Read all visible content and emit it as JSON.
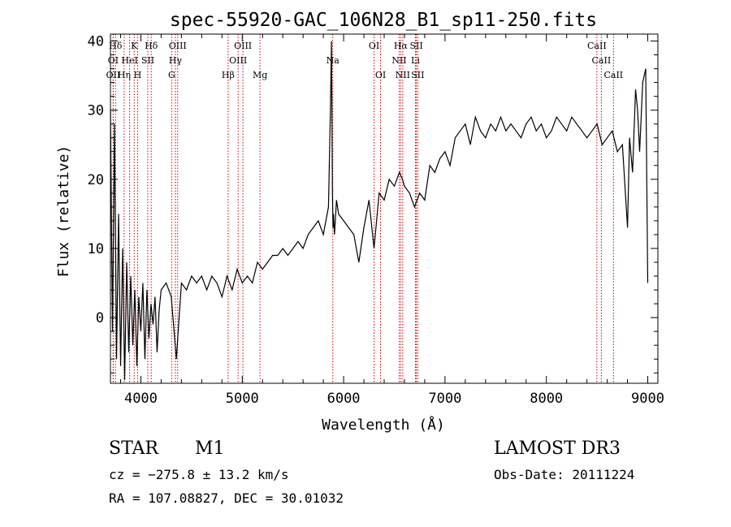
{
  "chart_data": {
    "type": "line",
    "title": "spec-55920-GAC_106N28_B1_sp11-250.fits",
    "xlabel": "Wavelength (Å)",
    "ylabel": "Flux (relative)",
    "xlim": [
      3700,
      9100
    ],
    "ylim": [
      -9.5,
      41
    ],
    "xticks": [
      4000,
      5000,
      6000,
      7000,
      8000,
      9000
    ],
    "yticks": [
      0,
      10,
      20,
      30,
      40
    ],
    "series": [
      {
        "name": "flux",
        "x": [
          3700,
          3720,
          3740,
          3760,
          3780,
          3800,
          3820,
          3840,
          3860,
          3880,
          3900,
          3920,
          3940,
          3960,
          3980,
          4000,
          4020,
          4040,
          4060,
          4080,
          4100,
          4120,
          4140,
          4160,
          4180,
          4200,
          4250,
          4300,
          4350,
          4400,
          4450,
          4500,
          4550,
          4600,
          4650,
          4700,
          4750,
          4800,
          4850,
          4900,
          4950,
          5000,
          5050,
          5100,
          5150,
          5200,
          5250,
          5300,
          5350,
          5400,
          5450,
          5500,
          5550,
          5600,
          5650,
          5700,
          5750,
          5800,
          5850,
          5870,
          5880,
          5890,
          5895,
          5900,
          5910,
          5930,
          5950,
          6000,
          6050,
          6100,
          6150,
          6200,
          6250,
          6300,
          6350,
          6400,
          6450,
          6500,
          6550,
          6580,
          6600,
          6650,
          6700,
          6750,
          6800,
          6850,
          6900,
          6950,
          7000,
          7050,
          7100,
          7150,
          7200,
          7250,
          7300,
          7350,
          7400,
          7450,
          7500,
          7550,
          7600,
          7650,
          7700,
          7750,
          7800,
          7850,
          7900,
          7950,
          8000,
          8050,
          8100,
          8150,
          8200,
          8250,
          8300,
          8350,
          8400,
          8450,
          8500,
          8550,
          8600,
          8650,
          8700,
          8750,
          8800,
          8820,
          8850,
          8880,
          8900,
          8920,
          8950,
          8980,
          9000
        ],
        "y": [
          30,
          -2,
          28,
          -6,
          15,
          -7,
          10,
          -9,
          8,
          -5,
          6,
          -4,
          4,
          -7,
          3,
          -2,
          5,
          -6,
          4,
          -3,
          2,
          -1,
          3,
          -5,
          1,
          4,
          5,
          3,
          -6,
          5,
          4,
          6,
          5,
          6,
          4,
          6,
          5,
          3,
          6,
          4,
          7,
          5,
          6,
          5,
          8,
          7,
          8,
          9,
          9,
          10,
          9,
          10,
          11,
          10,
          12,
          13,
          14,
          12,
          16,
          30,
          40,
          18,
          13,
          15,
          12,
          17,
          15,
          14,
          13,
          12,
          8,
          13,
          17,
          10,
          18,
          17,
          20,
          19,
          21,
          20,
          19,
          18,
          16,
          18,
          17,
          22,
          21,
          23,
          24,
          22,
          26,
          27,
          28,
          25,
          29,
          27,
          26,
          28,
          27,
          29,
          27,
          28,
          27,
          26,
          28,
          29,
          27,
          28,
          26,
          27,
          29,
          28,
          27,
          29,
          28,
          27,
          26,
          27,
          28,
          25,
          26,
          27,
          24,
          25,
          13,
          26,
          21,
          33,
          30,
          24,
          34,
          36,
          5
        ]
      }
    ],
    "lines": [
      {
        "label": "Hδ",
        "x": 3750,
        "row": 1
      },
      {
        "label": "K",
        "x": 3934,
        "row": 1
      },
      {
        "label": "Hδ",
        "x": 4102,
        "row": 1
      },
      {
        "label": "OIII",
        "x": 4363,
        "row": 1
      },
      {
        "label": "OIII",
        "x": 5007,
        "row": 1
      },
      {
        "label": "OI",
        "x": 6300,
        "row": 1
      },
      {
        "label": "Hα",
        "x": 6563,
        "row": 1
      },
      {
        "label": "SII",
        "x": 6717,
        "row": 1
      },
      {
        "label": "CaII",
        "x": 8498,
        "row": 1
      },
      {
        "label": "OI",
        "x": 3727,
        "row": 2
      },
      {
        "label": "HeI",
        "x": 3889,
        "row": 2
      },
      {
        "label": "SII",
        "x": 4068,
        "row": 2
      },
      {
        "label": "Hγ",
        "x": 4340,
        "row": 2
      },
      {
        "label": "OIII",
        "x": 4959,
        "row": 2
      },
      {
        "label": "Na",
        "x": 5893,
        "row": 2
      },
      {
        "label": "NII",
        "x": 6548,
        "row": 2
      },
      {
        "label": "Li",
        "x": 6708,
        "row": 2
      },
      {
        "label": "CaII",
        "x": 8542,
        "row": 2
      },
      {
        "label": "OII",
        "x": 3727,
        "row": 3
      },
      {
        "label": "Hη",
        "x": 3835,
        "row": 3
      },
      {
        "label": "H",
        "x": 3968,
        "row": 3
      },
      {
        "label": "G",
        "x": 4304,
        "row": 3
      },
      {
        "label": "Hβ",
        "x": 4861,
        "row": 3
      },
      {
        "label": "Mg",
        "x": 5175,
        "row": 3
      },
      {
        "label": "OI",
        "x": 6364,
        "row": 3
      },
      {
        "label": "NII",
        "x": 6583,
        "row": 3
      },
      {
        "label": "SII",
        "x": 6731,
        "row": 3
      },
      {
        "label": "CaII",
        "x": 8662,
        "row": 3
      }
    ],
    "line_color": "#cc0000"
  },
  "info": {
    "object_class": "STAR",
    "subclass": "M1",
    "survey": "LAMOST DR3",
    "cz": "cz = −275.8 ± 13.2 km/s",
    "obs_date": "Obs-Date: 20111224",
    "coords": "RA = 107.08827, DEC =  30.01032"
  }
}
